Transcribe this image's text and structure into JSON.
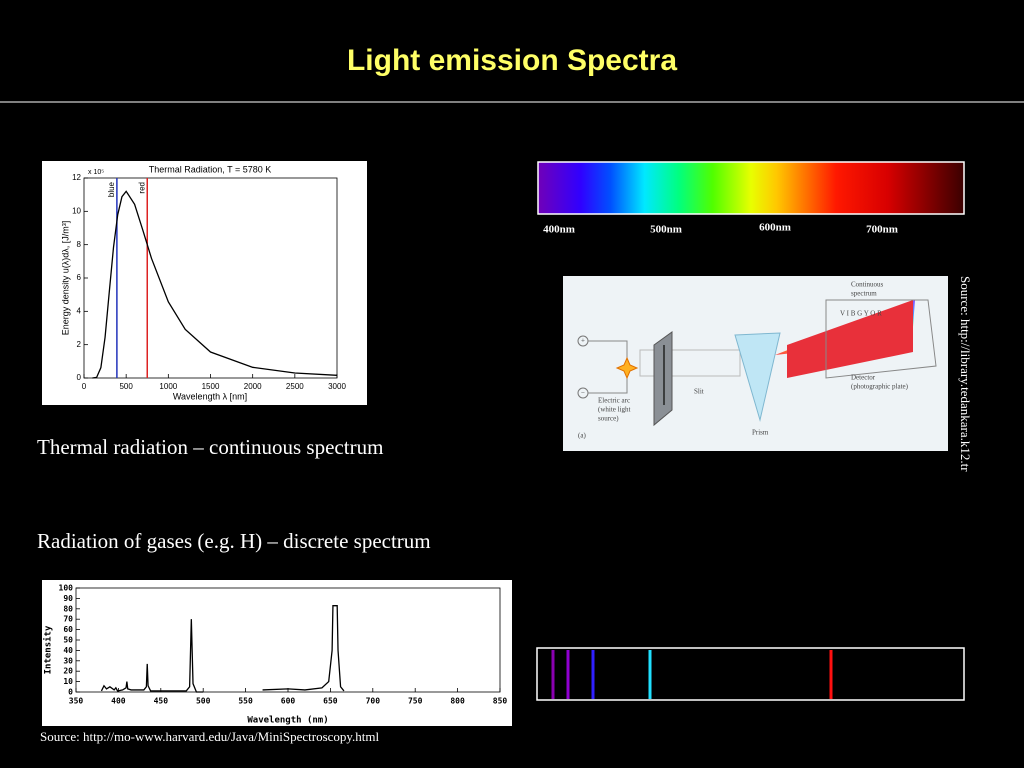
{
  "title": "Light emission Spectra",
  "captions": [
    "Thermal radiation – continuous spectrum",
    "Radiation of gases (e.g. H) – discrete spectrum"
  ],
  "sources": [
    "Source: http://mo-www.harvard.edu/Java/MiniSpectroscopy.html",
    "Source: http://library.tedankara.k12.tr"
  ],
  "spectrum_labels": [
    "400nm",
    "500nm",
    "600nm",
    "700nm"
  ],
  "prism_diagram": {
    "continuous_spectrum": [
      "Continuous",
      "spectrum"
    ],
    "colors": "V I B G Y O R",
    "slit": "Slit",
    "electric_arc": [
      "Electric arc",
      "(white light",
      "source)"
    ],
    "prism": "Prism",
    "detector": [
      "Detector",
      "(photographic plate)"
    ],
    "panel": "(a)",
    "plus": "+",
    "minus": "−"
  },
  "chart_data": [
    {
      "type": "line",
      "title": "Thermal Radiation, T = 5780 K",
      "multiplier": "x 10⁵",
      "xlabel": "Wavelength λ [nm]",
      "ylabel": "Energy density u(λ)dλ, [J/m³]",
      "x": [
        100,
        150,
        200,
        250,
        300,
        350,
        400,
        450,
        500,
        600,
        700,
        800,
        1000,
        1200,
        1500,
        2000,
        2500,
        3000
      ],
      "values": [
        0,
        0.04,
        0.62,
        2.45,
        5.18,
        7.85,
        9.8,
        10.88,
        11.2,
        10.42,
        8.83,
        7.18,
        4.57,
        2.92,
        1.56,
        0.64,
        0.3,
        0.16
      ],
      "color": "#000000",
      "markers": [
        {
          "label": "blue",
          "x": 390,
          "color": "#2233bb"
        },
        {
          "label": "red",
          "x": 750,
          "color": "#dd2222"
        }
      ],
      "xlim": [
        0,
        3000
      ],
      "xticks": [
        0,
        500,
        1000,
        1500,
        2000,
        2500,
        3000
      ],
      "ylim": [
        0,
        12
      ],
      "yticks": [
        0,
        2,
        4,
        6,
        8,
        10,
        12
      ]
    },
    {
      "type": "line",
      "xlabel": "Wavelength (nm)",
      "ylabel": "Intensity",
      "x": [
        380,
        383,
        386,
        390,
        395,
        397,
        399,
        405,
        409,
        410,
        411,
        415,
        430,
        433,
        434,
        435,
        438,
        450,
        480,
        484,
        486,
        488,
        492,
        500,
        530,
        570,
        600,
        620,
        640,
        648,
        652,
        653,
        658,
        659,
        662,
        666
      ],
      "values": [
        1,
        6,
        3,
        5,
        2,
        4,
        1,
        2,
        4,
        10,
        3,
        2,
        2,
        5,
        27,
        6,
        1,
        1,
        1,
        5,
        70,
        8,
        0,
        0,
        null,
        2,
        3,
        2,
        4,
        10,
        40,
        83,
        83,
        40,
        5,
        1
      ],
      "color": "#000000",
      "xlim": [
        350,
        850
      ],
      "xticks": [
        350,
        400,
        450,
        500,
        550,
        600,
        650,
        700,
        750,
        800,
        850
      ],
      "ylim": [
        0,
        100
      ],
      "yticks": [
        0,
        10,
        20,
        30,
        40,
        50,
        60,
        70,
        80,
        90,
        100
      ]
    }
  ]
}
